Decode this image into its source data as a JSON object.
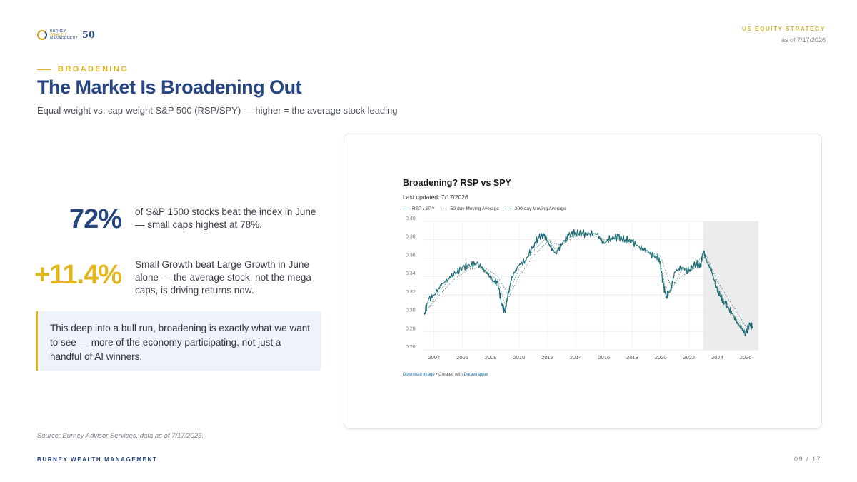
{
  "header": {
    "logo_text": [
      "BURNEY",
      "WEALTH",
      "MANAGEMENT"
    ],
    "logo_badge": "50",
    "kicker": "US EQUITY STRATEGY",
    "as_of": "as of 7/17/2026"
  },
  "section_tag": "BROADENING",
  "title": "The Market Is Broadening Out",
  "subtitle": "Equal-weight vs. cap-weight S&P 500 (RSP/SPY) — higher = the average stock leading",
  "stats": [
    {
      "value": "72%",
      "text": "of S&P 1500 stocks beat the index in June — small caps highest at 78%.",
      "color": "#27457f"
    },
    {
      "value": "+11.4%",
      "text": "Small Growth beat Large Growth in June alone — the average stock, not the mega caps, is driving returns now.",
      "color": "#e0b51e"
    }
  ],
  "callout": "This deep into a bull run, broadening is exactly what we want to see — more of the economy participating, not just a handful of AI winners.",
  "source": "Source: Burney Advisor Services, data as of 7/17/2026.",
  "footer": {
    "brand": "BURNEY WEALTH MANAGEMENT",
    "page": "09 / 17"
  },
  "colors": {
    "navy": "#27457f",
    "gold": "#e0b51e",
    "series": "#1f6a77",
    "ma50": "#5ca97d",
    "ma200": "#1f6a77",
    "shade": "#ececec"
  },
  "chart_footer": {
    "link_label": "Download image",
    "credit_prefix": " • Created with ",
    "credit_link": "Datawrapper"
  },
  "chart_data": {
    "type": "line",
    "title": "Broadening? RSP vs SPY",
    "subtitle": "Last updated: 7/17/2026",
    "legend": [
      "RSP / SPY",
      "50-day Moving Average",
      "200-day Moving Average"
    ],
    "xlim": [
      2003.2,
      2026.9
    ],
    "ylim": [
      0.26,
      0.4
    ],
    "x_ticks": [
      2004,
      2006,
      2008,
      2010,
      2012,
      2014,
      2016,
      2018,
      2020,
      2022,
      2024,
      2026
    ],
    "y_ticks": [
      "0.26",
      "0.28",
      "0.30",
      "0.32",
      "0.34",
      "0.36",
      "0.38",
      "0.40"
    ],
    "y_tick_values": [
      0.26,
      0.28,
      0.3,
      0.32,
      0.34,
      0.36,
      0.38,
      0.4
    ],
    "shaded_region": [
      2023.0,
      2026.9
    ],
    "grid": true,
    "legend_position": "top-left",
    "series": [
      {
        "name": "RSP / SPY",
        "x": [
          2003.3,
          2003.6,
          2004.0,
          2004.5,
          2005.0,
          2005.5,
          2006.0,
          2006.5,
          2007.0,
          2007.5,
          2007.8,
          2008.2,
          2008.5,
          2008.8,
          2009.0,
          2009.2,
          2009.5,
          2010.0,
          2010.5,
          2011.0,
          2011.4,
          2011.8,
          2012.2,
          2012.6,
          2013.0,
          2013.5,
          2014.0,
          2014.5,
          2015.0,
          2015.5,
          2016.0,
          2016.5,
          2017.0,
          2017.5,
          2018.0,
          2018.5,
          2019.0,
          2019.5,
          2019.9,
          2020.2,
          2020.4,
          2020.7,
          2021.0,
          2021.5,
          2022.0,
          2022.5,
          2022.8,
          2023.0,
          2023.3,
          2023.6,
          2023.9,
          2024.2,
          2024.5,
          2024.8,
          2025.1,
          2025.4,
          2025.7,
          2026.0,
          2026.3,
          2026.5
        ],
        "values": [
          0.298,
          0.315,
          0.32,
          0.33,
          0.338,
          0.343,
          0.35,
          0.352,
          0.354,
          0.348,
          0.342,
          0.335,
          0.333,
          0.308,
          0.302,
          0.318,
          0.34,
          0.352,
          0.358,
          0.373,
          0.382,
          0.386,
          0.372,
          0.365,
          0.375,
          0.385,
          0.388,
          0.386,
          0.387,
          0.386,
          0.376,
          0.382,
          0.383,
          0.38,
          0.378,
          0.372,
          0.368,
          0.362,
          0.36,
          0.33,
          0.318,
          0.325,
          0.345,
          0.35,
          0.345,
          0.355,
          0.35,
          0.368,
          0.355,
          0.345,
          0.33,
          0.318,
          0.312,
          0.305,
          0.298,
          0.29,
          0.283,
          0.278,
          0.288,
          0.285
        ]
      },
      {
        "name": "50-day Moving Average",
        "x": [
          2003.4,
          2004.0,
          2005.0,
          2006.0,
          2007.0,
          2007.8,
          2008.5,
          2009.0,
          2009.5,
          2010.0,
          2011.0,
          2012.0,
          2012.6,
          2013.5,
          2014.5,
          2015.5,
          2016.0,
          2017.0,
          2018.0,
          2019.0,
          2019.9,
          2020.3,
          2020.7,
          2021.5,
          2022.5,
          2023.0,
          2023.5,
          2024.0,
          2024.5,
          2025.0,
          2025.5,
          2026.0,
          2026.5
        ],
        "values": [
          0.3,
          0.316,
          0.336,
          0.348,
          0.353,
          0.344,
          0.336,
          0.31,
          0.33,
          0.348,
          0.368,
          0.383,
          0.368,
          0.382,
          0.387,
          0.386,
          0.378,
          0.382,
          0.377,
          0.368,
          0.359,
          0.33,
          0.323,
          0.348,
          0.352,
          0.365,
          0.348,
          0.325,
          0.312,
          0.3,
          0.29,
          0.28,
          0.286
        ]
      },
      {
        "name": "200-day Moving Average",
        "x": [
          2003.6,
          2004.5,
          2005.5,
          2006.5,
          2007.5,
          2008.5,
          2009.3,
          2010.0,
          2011.0,
          2012.0,
          2013.0,
          2014.0,
          2015.0,
          2016.0,
          2017.0,
          2018.0,
          2019.0,
          2020.0,
          2020.7,
          2021.5,
          2022.5,
          2023.2,
          2024.0,
          2024.8,
          2025.5,
          2026.0,
          2026.5
        ],
        "values": [
          0.305,
          0.322,
          0.338,
          0.348,
          0.35,
          0.34,
          0.318,
          0.34,
          0.362,
          0.378,
          0.374,
          0.384,
          0.386,
          0.38,
          0.381,
          0.377,
          0.368,
          0.362,
          0.33,
          0.34,
          0.35,
          0.363,
          0.335,
          0.315,
          0.298,
          0.286,
          0.284
        ]
      }
    ]
  }
}
